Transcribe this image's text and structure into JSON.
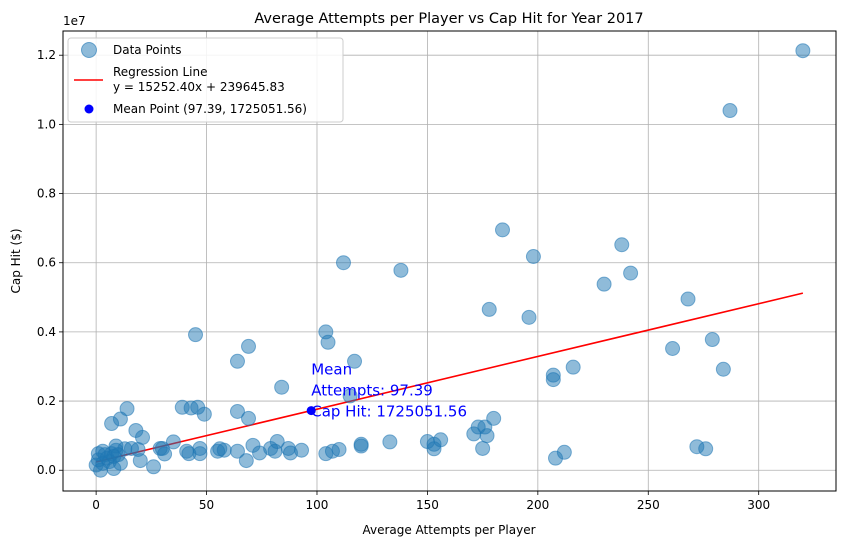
{
  "chart_data": {
    "type": "scatter",
    "title": "Average Attempts per Player vs Cap Hit for Year 2017",
    "xlabel": "Average Attempts per Player",
    "ylabel": "Cap Hit ($)",
    "y_multiplier_label": "1e7",
    "xlim": [
      -15,
      335
    ],
    "ylim": [
      -0.06,
      1.27
    ],
    "x_ticks": [
      0,
      50,
      100,
      150,
      200,
      250,
      300
    ],
    "x_tick_labels": [
      "0",
      "50",
      "100",
      "150",
      "200",
      "250",
      "300"
    ],
    "y_ticks": [
      0,
      0.2,
      0.4,
      0.6,
      0.8,
      1.0,
      1.2
    ],
    "y_tick_labels": [
      "0.0",
      "0.2",
      "0.4",
      "0.6",
      "0.8",
      "1.0",
      "1.2"
    ],
    "grid": true,
    "legend_position": "top-left",
    "colors": {
      "points": "#1f77b4",
      "regression": "#ff0000",
      "mean": "#0000ff"
    },
    "series": [
      {
        "name": "Data Points",
        "points": [
          [
            0,
            0.015
          ],
          [
            1,
            0.048
          ],
          [
            1,
            0.03
          ],
          [
            2,
            0.0
          ],
          [
            3,
            0.02
          ],
          [
            3,
            0.055
          ],
          [
            4,
            0.045
          ],
          [
            5,
            0.035
          ],
          [
            6,
            0.025
          ],
          [
            7,
            0.048
          ],
          [
            7,
            0.135
          ],
          [
            8,
            0.005
          ],
          [
            8,
            0.04
          ],
          [
            9,
            0.058
          ],
          [
            9,
            0.07
          ],
          [
            10,
            0.045
          ],
          [
            11,
            0.148
          ],
          [
            11,
            0.02
          ],
          [
            13,
            0.062
          ],
          [
            14,
            0.178
          ],
          [
            16,
            0.063
          ],
          [
            18,
            0.115
          ],
          [
            19,
            0.06
          ],
          [
            20,
            0.028
          ],
          [
            21,
            0.095
          ],
          [
            26,
            0.01
          ],
          [
            29,
            0.063
          ],
          [
            30,
            0.063
          ],
          [
            31,
            0.047
          ],
          [
            35,
            0.082
          ],
          [
            39,
            0.182
          ],
          [
            41,
            0.055
          ],
          [
            42,
            0.048
          ],
          [
            43,
            0.18
          ],
          [
            45,
            0.392
          ],
          [
            46,
            0.182
          ],
          [
            47,
            0.048
          ],
          [
            47,
            0.063
          ],
          [
            49,
            0.162
          ],
          [
            55,
            0.055
          ],
          [
            56,
            0.062
          ],
          [
            58,
            0.058
          ],
          [
            64,
            0.055
          ],
          [
            64,
            0.17
          ],
          [
            64,
            0.315
          ],
          [
            68,
            0.028
          ],
          [
            69,
            0.358
          ],
          [
            69,
            0.15
          ],
          [
            71,
            0.072
          ],
          [
            74,
            0.05
          ],
          [
            79,
            0.063
          ],
          [
            81,
            0.055
          ],
          [
            82,
            0.083
          ],
          [
            84,
            0.24
          ],
          [
            87,
            0.063
          ],
          [
            88,
            0.05
          ],
          [
            93,
            0.058
          ],
          [
            104,
            0.4
          ],
          [
            104,
            0.048
          ],
          [
            105,
            0.37
          ],
          [
            107,
            0.055
          ],
          [
            110,
            0.06
          ],
          [
            112,
            0.6
          ],
          [
            115,
            0.215
          ],
          [
            117,
            0.315
          ],
          [
            120,
            0.07
          ],
          [
            120,
            0.075
          ],
          [
            133,
            0.082
          ],
          [
            138,
            0.578
          ],
          [
            150,
            0.083
          ],
          [
            153,
            0.062
          ],
          [
            153,
            0.075
          ],
          [
            156,
            0.088
          ],
          [
            171,
            0.105
          ],
          [
            173,
            0.125
          ],
          [
            175,
            0.063
          ],
          [
            176,
            0.125
          ],
          [
            177,
            0.1
          ],
          [
            178,
            0.465
          ],
          [
            180,
            0.15
          ],
          [
            184,
            0.695
          ],
          [
            196,
            0.442
          ],
          [
            198,
            0.618
          ],
          [
            207,
            0.275
          ],
          [
            207,
            0.262
          ],
          [
            208,
            0.035
          ],
          [
            212,
            0.052
          ],
          [
            216,
            0.298
          ],
          [
            230,
            0.538
          ],
          [
            238,
            0.652
          ],
          [
            242,
            0.57
          ],
          [
            261,
            0.352
          ],
          [
            268,
            0.495
          ],
          [
            272,
            0.068
          ],
          [
            276,
            0.062
          ],
          [
            279,
            0.378
          ],
          [
            284,
            0.292
          ],
          [
            287,
            1.04
          ],
          [
            320,
            1.213
          ]
        ]
      },
      {
        "name": "Regression Line\ny = 15252.40x + 239645.83",
        "slope": 15252.4,
        "intercept": 239645.83,
        "x_range": [
          0,
          320
        ]
      },
      {
        "name": "Mean Point (97.39, 1725051.56)",
        "x": 97.39,
        "y": 1725051.56
      }
    ],
    "legend": {
      "data_points": "Data Points",
      "regression_line_1": "Regression Line",
      "regression_line_2": "y = 15252.40x + 239645.83",
      "mean_point": "Mean Point (97.39, 1725051.56)"
    },
    "annotation": {
      "lines": [
        "Mean",
        "Attempts: 97.39",
        "Cap Hit: 1725051.56"
      ],
      "x": 97.39,
      "y": 1725051.56
    }
  }
}
